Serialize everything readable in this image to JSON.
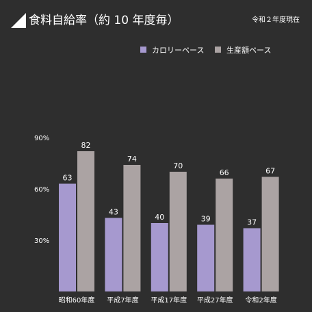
{
  "header": {
    "title": "食料自給率（約 10 年度毎）",
    "note": "令和２年度現在"
  },
  "chart_data": {
    "type": "bar",
    "title": "食料自給率（約 10 年度毎）",
    "xlabel": "",
    "ylabel": "",
    "categories": [
      "昭和60年度",
      "平成7年度",
      "平成17年度",
      "平成27年度",
      "令和2年度"
    ],
    "series": [
      {
        "name": "カロリーベース",
        "values": [
          63,
          43,
          40,
          39,
          37
        ],
        "color": "#a699cf"
      },
      {
        "name": "生産額ベース",
        "values": [
          82,
          74,
          70,
          66,
          67
        ],
        "color": "#aba3a3"
      }
    ],
    "yticks": [
      "90%",
      "60%",
      "30%"
    ],
    "ytick_values": [
      90,
      60,
      30
    ],
    "ylim": [
      0,
      90
    ],
    "grid": false,
    "legend_position": "top-right",
    "data_labels": true
  },
  "colors": {
    "background": "#2e2e2e",
    "text": "#ffffff",
    "calorie": "#a699cf",
    "production": "#aba3a3"
  }
}
